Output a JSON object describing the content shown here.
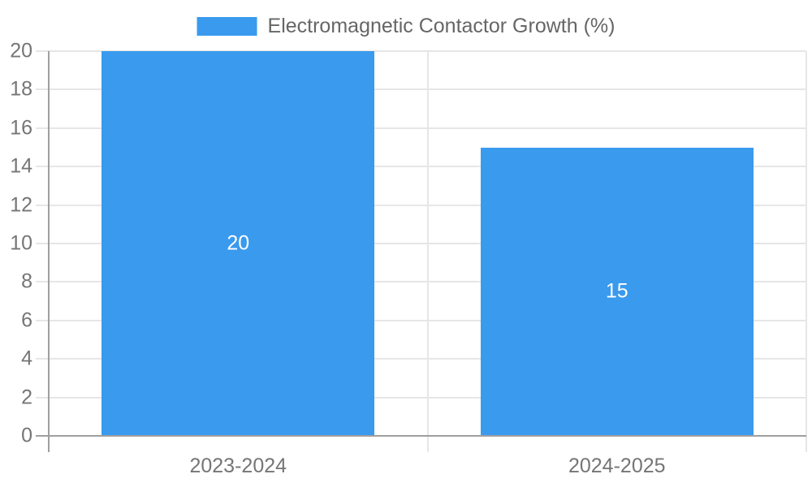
{
  "legend": {
    "label": "Electromagnetic Contactor Growth (%)"
  },
  "colors": {
    "bar": "#399aee",
    "grid": "#e6e6e6",
    "axis": "#9f9f9f",
    "tick_text": "#757575",
    "legend_text": "#666666",
    "value_label_text": "#ffffff",
    "background": "#ffffff"
  },
  "chart_data": {
    "type": "bar",
    "categories": [
      "2023-2024",
      "2024-2025"
    ],
    "series": [
      {
        "name": "Electromagnetic Contactor Growth (%)",
        "values": [
          20,
          15
        ]
      }
    ],
    "value_labels": [
      "20",
      "15"
    ],
    "title": "",
    "xlabel": "",
    "ylabel": "",
    "ylim": [
      0,
      20
    ],
    "yticks": [
      0,
      2,
      4,
      6,
      8,
      10,
      12,
      14,
      16,
      18,
      20
    ],
    "grid": true,
    "legend_position": "top",
    "value_label_position": "center"
  }
}
